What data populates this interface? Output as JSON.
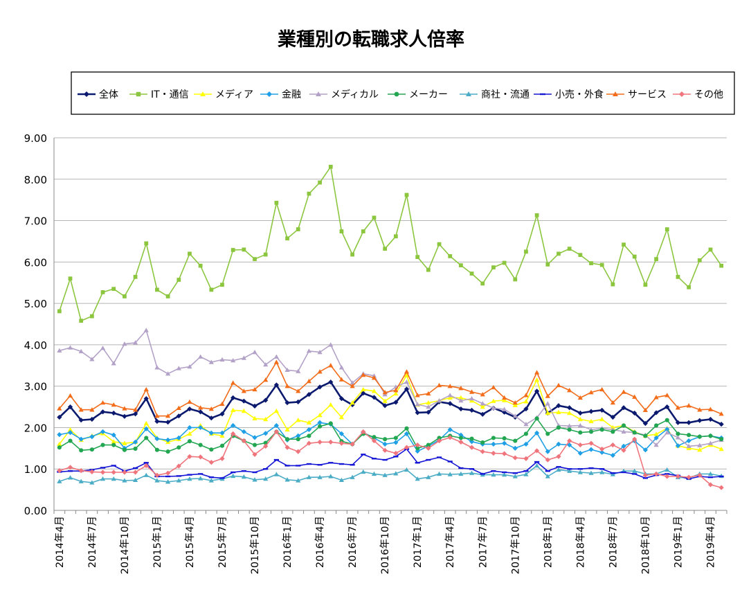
{
  "chart_data": {
    "type": "line",
    "title": "業種別の転職求人倍率",
    "xlabel": "",
    "ylabel": "",
    "ylim": [
      0,
      9
    ],
    "yticks": [
      "0.00",
      "1.00",
      "2.00",
      "3.00",
      "4.00",
      "5.00",
      "6.00",
      "7.00",
      "8.00",
      "9.00"
    ],
    "grid": true,
    "legend_position": "top",
    "x": [
      "2014年4月",
      "2014年5月",
      "2014年6月",
      "2014年7月",
      "2014年8月",
      "2014年9月",
      "2014年10月",
      "2014年11月",
      "2014年12月",
      "2015年1月",
      "2015年2月",
      "2015年3月",
      "2015年4月",
      "2015年5月",
      "2015年6月",
      "2015年7月",
      "2015年8月",
      "2015年9月",
      "2015年10月",
      "2015年11月",
      "2015年12月",
      "2016年1月",
      "2016年2月",
      "2016年3月",
      "2016年4月",
      "2016年5月",
      "2016年6月",
      "2016年7月",
      "2016年8月",
      "2016年9月",
      "2016年10月",
      "2016年11月",
      "2016年12月",
      "2017年1月",
      "2017年2月",
      "2017年3月",
      "2017年4月",
      "2017年5月",
      "2017年6月",
      "2017年7月",
      "2017年8月",
      "2017年9月",
      "2017年10月",
      "2017年11月",
      "2017年12月",
      "2018年1月",
      "2018年2月",
      "2018年3月",
      "2018年4月",
      "2018年5月",
      "2018年6月",
      "2018年7月",
      "2018年8月",
      "2018年9月",
      "2018年10月",
      "2018年11月",
      "2018年12月",
      "2019年1月",
      "2019年2月",
      "2019年3月",
      "2019年4月",
      "2019年5月"
    ],
    "x_tick_labels": [
      "2014年4月",
      "2014年7月",
      "2014年10月",
      "2015年1月",
      "2015年4月",
      "2015年7月",
      "2015年10月",
      "2016年1月",
      "2016年4月",
      "2016年7月",
      "2016年10月",
      "2017年1月",
      "2017年4月",
      "2017年7月",
      "2017年10月",
      "2018年1月",
      "2018年4月",
      "2018年7月",
      "2018年10月",
      "2019年1月",
      "2019年4月"
    ],
    "series": [
      {
        "name": "全体",
        "color": "#0b1a6e",
        "marker": "diamond",
        "values": [
          2.25,
          2.5,
          2.18,
          2.2,
          2.38,
          2.35,
          2.27,
          2.33,
          2.7,
          2.15,
          2.13,
          2.28,
          2.45,
          2.38,
          2.23,
          2.33,
          2.72,
          2.64,
          2.52,
          2.66,
          3.03,
          2.6,
          2.62,
          2.8,
          2.98,
          3.1,
          2.7,
          2.55,
          2.83,
          2.73,
          2.53,
          2.61,
          2.93,
          2.36,
          2.37,
          2.62,
          2.58,
          2.45,
          2.42,
          2.32,
          2.47,
          2.37,
          2.25,
          2.45,
          2.88,
          2.35,
          2.53,
          2.48,
          2.35,
          2.39,
          2.42,
          2.25,
          2.48,
          2.35,
          2.1,
          2.36,
          2.5,
          2.12,
          2.12,
          2.17,
          2.2,
          2.08
        ]
      },
      {
        "name": "IT・通信",
        "color": "#8cc63f",
        "marker": "square",
        "values": [
          4.81,
          5.6,
          4.58,
          4.69,
          5.27,
          5.35,
          5.17,
          5.64,
          6.45,
          5.33,
          5.17,
          5.57,
          6.2,
          5.91,
          5.33,
          5.45,
          6.29,
          6.3,
          6.07,
          6.18,
          7.43,
          6.57,
          6.79,
          7.65,
          7.92,
          8.3,
          6.74,
          6.18,
          6.74,
          7.07,
          6.32,
          6.62,
          7.62,
          6.12,
          5.81,
          6.43,
          6.14,
          5.92,
          5.72,
          5.48,
          5.87,
          5.98,
          5.58,
          6.25,
          7.13,
          5.94,
          6.2,
          6.32,
          6.17,
          5.97,
          5.93,
          5.46,
          6.42,
          6.13,
          5.45,
          6.07,
          6.79,
          5.64,
          5.39,
          6.04,
          6.3,
          5.91
        ]
      },
      {
        "name": "メディア",
        "color": "#ffff00",
        "marker": "triangle",
        "values": [
          1.6,
          1.95,
          1.7,
          1.8,
          1.86,
          1.66,
          1.62,
          1.65,
          2.1,
          1.75,
          1.65,
          1.72,
          1.85,
          2.05,
          1.85,
          1.8,
          2.42,
          2.4,
          2.22,
          2.2,
          2.4,
          1.95,
          2.18,
          2.12,
          2.3,
          2.55,
          2.25,
          2.6,
          2.92,
          2.88,
          2.64,
          2.82,
          3.26,
          2.55,
          2.6,
          2.65,
          2.72,
          2.72,
          2.65,
          2.5,
          2.64,
          2.66,
          2.54,
          2.63,
          3.15,
          2.35,
          2.37,
          2.35,
          2.2,
          2.15,
          2.2,
          2.0,
          2.05,
          1.9,
          1.8,
          1.84,
          1.98,
          1.56,
          1.5,
          1.46,
          1.58,
          1.48
        ]
      },
      {
        "name": "金融",
        "color": "#1e9fe6",
        "marker": "diamond",
        "values": [
          1.83,
          1.88,
          1.72,
          1.78,
          1.9,
          1.82,
          1.5,
          1.65,
          1.97,
          1.73,
          1.7,
          1.75,
          2.0,
          2.0,
          1.87,
          1.87,
          2.05,
          1.9,
          1.76,
          1.86,
          2.05,
          1.7,
          1.8,
          1.95,
          2.12,
          2.08,
          1.85,
          1.6,
          1.88,
          1.75,
          1.6,
          1.64,
          1.85,
          1.43,
          1.55,
          1.7,
          1.95,
          1.82,
          1.66,
          1.6,
          1.6,
          1.62,
          1.5,
          1.6,
          1.87,
          1.42,
          1.6,
          1.58,
          1.38,
          1.47,
          1.4,
          1.33,
          1.55,
          1.68,
          1.46,
          1.75,
          1.96,
          1.56,
          1.68,
          1.78,
          1.8,
          1.75
        ]
      },
      {
        "name": "メディカル",
        "color": "#b3a2c7",
        "marker": "triangle",
        "values": [
          3.86,
          3.93,
          3.84,
          3.65,
          3.92,
          3.55,
          4.02,
          4.05,
          4.35,
          3.45,
          3.3,
          3.43,
          3.47,
          3.71,
          3.58,
          3.64,
          3.62,
          3.68,
          3.82,
          3.52,
          3.71,
          3.39,
          3.36,
          3.85,
          3.82,
          4.0,
          3.45,
          3.08,
          3.3,
          3.25,
          2.8,
          2.98,
          3.1,
          2.56,
          2.5,
          2.65,
          2.78,
          2.65,
          2.7,
          2.58,
          2.47,
          2.44,
          2.28,
          2.08,
          2.24,
          2.58,
          2.05,
          2.04,
          2.05,
          1.95,
          1.98,
          1.95,
          1.9,
          1.88,
          1.82,
          1.58,
          1.88,
          1.76,
          1.55,
          1.57,
          1.62,
          1.7
        ]
      },
      {
        "name": "メーカー",
        "color": "#22a651",
        "marker": "circle",
        "values": [
          1.52,
          1.68,
          1.45,
          1.47,
          1.58,
          1.58,
          1.46,
          1.49,
          1.75,
          1.46,
          1.42,
          1.52,
          1.67,
          1.58,
          1.47,
          1.56,
          1.8,
          1.68,
          1.58,
          1.63,
          1.9,
          1.72,
          1.72,
          1.8,
          2.03,
          2.1,
          1.67,
          1.6,
          1.85,
          1.77,
          1.72,
          1.75,
          1.98,
          1.5,
          1.58,
          1.75,
          1.8,
          1.75,
          1.73,
          1.64,
          1.75,
          1.74,
          1.68,
          1.85,
          2.22,
          1.85,
          2.0,
          1.95,
          1.88,
          1.9,
          1.95,
          1.9,
          2.05,
          1.88,
          1.8,
          2.05,
          2.18,
          1.85,
          1.82,
          1.78,
          1.8,
          1.72
        ]
      },
      {
        "name": "商社・流通",
        "color": "#4bacc6",
        "marker": "triangle",
        "values": [
          0.7,
          0.79,
          0.7,
          0.67,
          0.76,
          0.76,
          0.72,
          0.73,
          0.85,
          0.72,
          0.69,
          0.72,
          0.76,
          0.77,
          0.72,
          0.76,
          0.83,
          0.81,
          0.74,
          0.76,
          0.87,
          0.74,
          0.72,
          0.8,
          0.8,
          0.82,
          0.73,
          0.8,
          0.93,
          0.88,
          0.85,
          0.89,
          0.98,
          0.76,
          0.8,
          0.88,
          0.87,
          0.88,
          0.9,
          0.86,
          0.86,
          0.86,
          0.82,
          0.87,
          1.08,
          0.82,
          0.98,
          0.95,
          0.92,
          0.9,
          0.92,
          0.87,
          0.95,
          0.95,
          0.88,
          0.88,
          0.98,
          0.8,
          0.78,
          0.88,
          0.88,
          0.83
        ]
      },
      {
        "name": "小売・外食",
        "color": "#1616d6",
        "marker": "dash",
        "values": [
          0.93,
          0.95,
          0.95,
          0.98,
          1.03,
          1.08,
          0.95,
          1.02,
          1.15,
          0.82,
          0.82,
          0.83,
          0.86,
          0.88,
          0.8,
          0.78,
          0.92,
          0.95,
          0.92,
          1.0,
          1.22,
          1.08,
          1.08,
          1.12,
          1.1,
          1.15,
          1.12,
          1.1,
          1.35,
          1.25,
          1.22,
          1.3,
          1.48,
          1.15,
          1.22,
          1.28,
          1.18,
          1.02,
          1.0,
          0.88,
          0.95,
          0.92,
          0.9,
          0.95,
          1.17,
          0.95,
          1.05,
          1.0,
          1.0,
          1.02,
          1.0,
          0.9,
          0.92,
          0.88,
          0.78,
          0.85,
          0.88,
          0.84,
          0.76,
          0.82,
          0.8,
          0.82
        ]
      },
      {
        "name": "サービス",
        "color": "#f26c1a",
        "marker": "triangle",
        "values": [
          2.46,
          2.77,
          2.43,
          2.43,
          2.6,
          2.55,
          2.46,
          2.43,
          2.92,
          2.28,
          2.28,
          2.47,
          2.62,
          2.48,
          2.45,
          2.57,
          3.08,
          2.88,
          2.92,
          3.15,
          3.58,
          3.0,
          2.88,
          3.12,
          3.35,
          3.5,
          3.16,
          3.0,
          3.27,
          3.2,
          2.85,
          2.9,
          3.35,
          2.78,
          2.82,
          3.02,
          3.0,
          2.95,
          2.86,
          2.8,
          2.97,
          2.72,
          2.6,
          2.78,
          3.33,
          2.76,
          3.02,
          2.9,
          2.72,
          2.85,
          2.92,
          2.6,
          2.86,
          2.74,
          2.42,
          2.73,
          2.78,
          2.48,
          2.53,
          2.43,
          2.44,
          2.33
        ]
      },
      {
        "name": "その他",
        "color": "#f0747c",
        "marker": "diamond",
        "values": [
          0.96,
          1.04,
          0.96,
          0.93,
          0.92,
          0.92,
          0.92,
          0.92,
          1.08,
          0.85,
          0.9,
          1.07,
          1.3,
          1.29,
          1.16,
          1.25,
          1.85,
          1.68,
          1.35,
          1.55,
          1.9,
          1.52,
          1.42,
          1.62,
          1.65,
          1.65,
          1.62,
          1.6,
          1.9,
          1.68,
          1.45,
          1.38,
          1.52,
          1.58,
          1.5,
          1.68,
          1.76,
          1.65,
          1.52,
          1.42,
          1.38,
          1.37,
          1.27,
          1.25,
          1.44,
          1.22,
          1.3,
          1.68,
          1.58,
          1.62,
          1.48,
          1.58,
          1.45,
          1.72,
          0.85,
          0.88,
          0.82,
          0.82,
          0.8,
          0.85,
          0.62,
          0.55
        ]
      }
    ]
  }
}
